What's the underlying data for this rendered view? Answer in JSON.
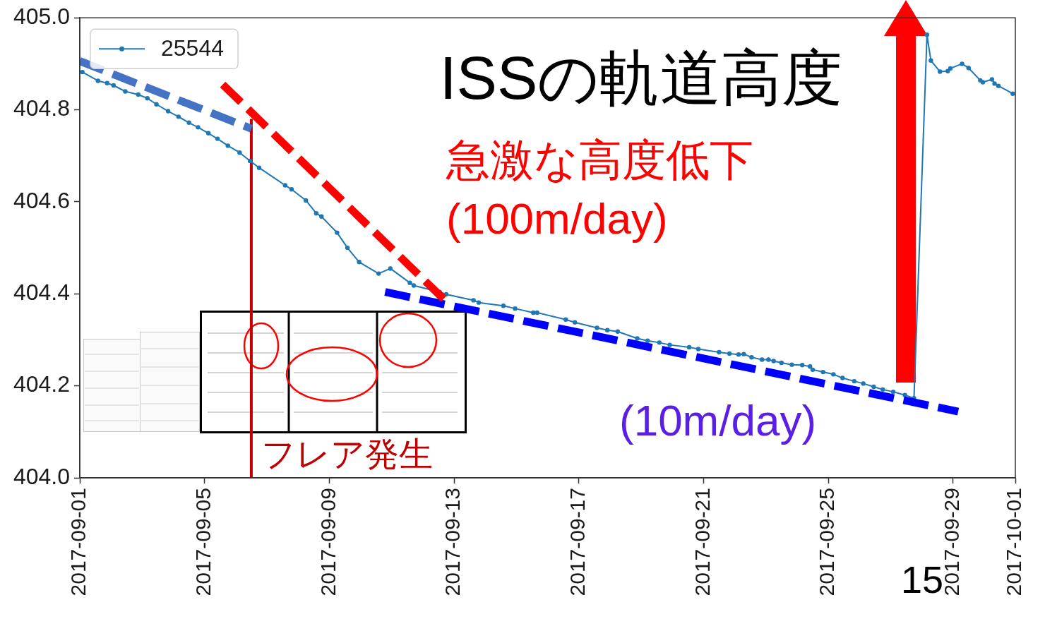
{
  "chart_data": {
    "type": "line",
    "title": "ISSの軌道高度",
    "xlim": [
      "2017-09-01",
      "2017-10-01"
    ],
    "xticks": [
      "2017-09-01",
      "2017-09-05",
      "2017-09-09",
      "2017-09-13",
      "2017-09-17",
      "2017-09-21",
      "2017-09-25",
      "2017-09-29",
      "2017-10-01"
    ],
    "ylim": [
      404.0,
      405.0
    ],
    "yticks": [
      {
        "value": 404.0,
        "label": "404.0"
      },
      404.2,
      404.4,
      404.6,
      404.8,
      {
        "value": 405.0,
        "label": "405.0"
      }
    ],
    "legend": "top left",
    "marker": "circle",
    "line_style": "solid",
    "series": [
      {
        "name": "25544",
        "color": "#1f77b4",
        "x": [
          "2017-09-01T02:00",
          "2017-09-01T14:00",
          "2017-09-01T21:00",
          "2017-09-02T02:00",
          "2017-09-02T11:00",
          "2017-09-02T21:00",
          "2017-09-03T04:00",
          "2017-09-03T11:00",
          "2017-09-03T20:00",
          "2017-09-04T04:00",
          "2017-09-04T12:00",
          "2017-09-04T19:00",
          "2017-09-05T03:00",
          "2017-09-05T10:00",
          "2017-09-05T18:00",
          "2017-09-06T03:00",
          "2017-09-06T11:00",
          "2017-09-06T18:00",
          "2017-09-07T14:00",
          "2017-09-07T19:00",
          "2017-09-08T06:00",
          "2017-09-08T14:00",
          "2017-09-08T18:00",
          "2017-09-09T06:00",
          "2017-09-09T14:00",
          "2017-09-09T23:00",
          "2017-09-10T14:00",
          "2017-09-10T23:00",
          "2017-09-11T14:00",
          "2017-09-11T17:00",
          "2017-09-12T13:00",
          "2017-09-12T18:00",
          "2017-09-13T15:00",
          "2017-09-13T19:00",
          "2017-09-14T14:00",
          "2017-09-14T23:00",
          "2017-09-15T13:00",
          "2017-09-15T16:00",
          "2017-09-16T14:00",
          "2017-09-16T21:00",
          "2017-09-17T14:00",
          "2017-09-17T22:00",
          "2017-09-18T06:00",
          "2017-09-18T21:00",
          "2017-09-19T05:00",
          "2017-09-19T14:00",
          "2017-09-19T22:00",
          "2017-09-20T13:00",
          "2017-09-20T20:00",
          "2017-09-21T12:00",
          "2017-09-21T20:00",
          "2017-09-22T03:00",
          "2017-09-22T07:00",
          "2017-09-22T13:00",
          "2017-09-22T21:00",
          "2017-09-23T02:00",
          "2017-09-23T06:00",
          "2017-09-23T12:00",
          "2017-09-23T20:00",
          "2017-09-24T04:00",
          "2017-09-24T10:00",
          "2017-09-24T12:00",
          "2017-09-24T20:00",
          "2017-09-25T04:00",
          "2017-09-25T11:00",
          "2017-09-25T20:00",
          "2017-09-26T03:00",
          "2017-09-26T11:00",
          "2017-09-26T18:00",
          "2017-09-27T02:00",
          "2017-09-27T11:00",
          "2017-09-27T18:00",
          "2017-09-28T04:00",
          "2017-09-28T07:00",
          "2017-09-28T14:00",
          "2017-09-28T20:00",
          "2017-09-28T22:00",
          "2017-09-29T07:00",
          "2017-09-29T12:00",
          "2017-09-29T21:00",
          "2017-09-29T23:00",
          "2017-09-30T06:00",
          "2017-09-30T08:00",
          "2017-09-30T11:00",
          "2017-09-30T22:00"
        ],
        "values": [
          404.882,
          404.863,
          404.858,
          404.853,
          404.84,
          404.833,
          404.825,
          404.812,
          404.797,
          404.785,
          404.772,
          404.762,
          404.749,
          404.737,
          404.722,
          404.707,
          404.689,
          404.674,
          404.636,
          404.627,
          404.603,
          404.575,
          404.568,
          404.533,
          404.5,
          404.469,
          404.444,
          404.455,
          404.424,
          404.418,
          404.404,
          404.399,
          404.386,
          404.381,
          404.374,
          404.368,
          404.359,
          404.359,
          404.344,
          404.338,
          404.326,
          404.321,
          404.318,
          404.303,
          404.298,
          404.294,
          404.289,
          404.284,
          404.28,
          404.273,
          404.27,
          404.268,
          404.269,
          404.262,
          404.257,
          404.257,
          404.254,
          404.25,
          404.246,
          404.245,
          404.242,
          404.235,
          404.23,
          404.225,
          404.217,
          404.21,
          404.205,
          404.198,
          404.192,
          404.187,
          404.18,
          404.173,
          404.963,
          404.907,
          404.883,
          404.884,
          404.89,
          404.9,
          404.891,
          404.864,
          404.86,
          404.866,
          404.857,
          404.852,
          404.835
        ]
      },
      {
        "type": "line",
        "color": "#4472c4",
        "marker": "none",
        "line_style": "dashed",
        "x": [
          "2017-09-01",
          "2017-09-06T12:00"
        ],
        "values": [
          404.906,
          404.759
        ]
      },
      {
        "type": "line",
        "color": "#ff0000",
        "marker": "none",
        "line_style": "dashed",
        "x": [
          "2017-09-05T14:00",
          "2017-09-12T17:00"
        ],
        "values": [
          404.855,
          404.386
        ]
      },
      {
        "type": "line",
        "color": "#0000ff",
        "marker": "none",
        "line_style": "dashed",
        "x": [
          "2017-09-10T19:00",
          "2017-09-29T04:00"
        ],
        "values": [
          404.404,
          404.144
        ]
      }
    ],
    "ref_lines": [
      {
        "axis": "x",
        "value": "2017-09-06T12:00",
        "label": "フレア発生",
        "color": "#c00000"
      }
    ],
    "annotations": [
      "急激な高度低下",
      "(100m/day)",
      "(10m/day)",
      "15"
    ]
  }
}
